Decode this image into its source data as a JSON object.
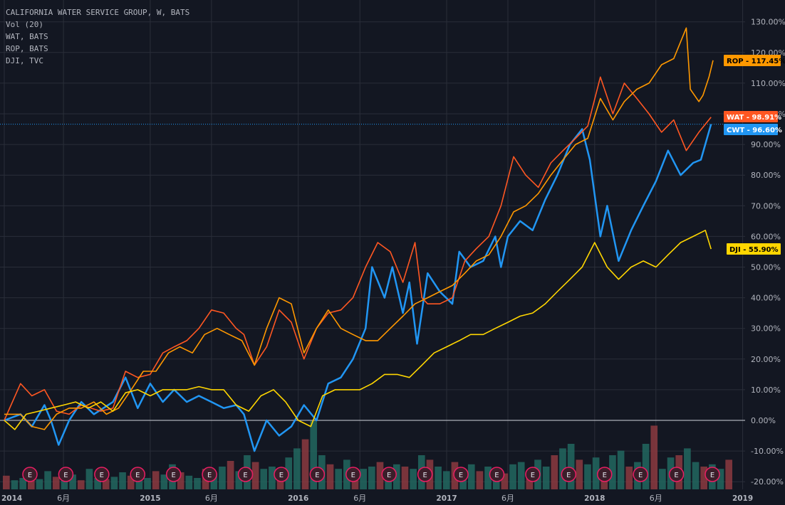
{
  "legend": {
    "lines": [
      "CALIFORNIA WATER SERVICE GROUP, W, BATS",
      "Vol (20)",
      "WAT, BATS",
      "ROP, BATS",
      "DJI, TVC"
    ]
  },
  "chart_data": {
    "type": "line",
    "ylim": [
      -20,
      130
    ],
    "yticks": [
      "-20.00%",
      "-10.00%",
      "0.00%",
      "10.00%",
      "20.00%",
      "30.00%",
      "40.00%",
      "50.00%",
      "60.00%",
      "70.00%",
      "80.00%",
      "90.00%",
      "100.00%",
      "110.00%",
      "120.00%",
      "130.00%"
    ],
    "xlim": [
      "2014-01-06",
      "2018-12-31"
    ],
    "xticks": [
      {
        "label": "2014",
        "date": "2014-01-06",
        "major": true
      },
      {
        "label": "6月",
        "date": "2014-06-01",
        "major": false
      },
      {
        "label": "2015",
        "date": "2015-01-01",
        "major": true
      },
      {
        "label": "6月",
        "date": "2015-06-01",
        "major": false
      },
      {
        "label": "2016",
        "date": "2016-01-01",
        "major": true
      },
      {
        "label": "6月",
        "date": "2016-06-01",
        "major": false
      },
      {
        "label": "2017",
        "date": "2017-01-01",
        "major": true
      },
      {
        "label": "6月",
        "date": "2017-06-01",
        "major": false
      },
      {
        "label": "2018",
        "date": "2018-01-01",
        "major": true
      },
      {
        "label": "6月",
        "date": "2018-06-01",
        "major": false
      },
      {
        "label": "2019",
        "date": "2019-01-01",
        "major": true
      }
    ],
    "series": [
      {
        "name": "CWT",
        "color": "#2196f3",
        "last_label": "CWT - 96.60%",
        "points": [
          [
            "2014-01-06",
            0
          ],
          [
            "2014-02-15",
            2
          ],
          [
            "2014-03-15",
            -2
          ],
          [
            "2014-04-15",
            5
          ],
          [
            "2014-05-01",
            0
          ],
          [
            "2014-05-20",
            -8
          ],
          [
            "2014-06-15",
            0
          ],
          [
            "2014-07-15",
            6
          ],
          [
            "2014-08-15",
            2
          ],
          [
            "2014-10-01",
            6
          ],
          [
            "2014-11-01",
            14
          ],
          [
            "2014-12-01",
            4
          ],
          [
            "2015-01-01",
            12
          ],
          [
            "2015-02-01",
            6
          ],
          [
            "2015-03-01",
            10
          ],
          [
            "2015-04-01",
            6
          ],
          [
            "2015-05-01",
            8
          ],
          [
            "2015-06-01",
            6
          ],
          [
            "2015-07-01",
            4
          ],
          [
            "2015-08-01",
            5
          ],
          [
            "2015-08-20",
            2
          ],
          [
            "2015-09-15",
            -10
          ],
          [
            "2015-10-15",
            0
          ],
          [
            "2015-11-15",
            -5
          ],
          [
            "2015-12-15",
            -2
          ],
          [
            "2016-01-15",
            5
          ],
          [
            "2016-02-15",
            0
          ],
          [
            "2016-03-15",
            12
          ],
          [
            "2016-04-15",
            14
          ],
          [
            "2016-05-15",
            20
          ],
          [
            "2016-06-15",
            30
          ],
          [
            "2016-07-01",
            50
          ],
          [
            "2016-08-01",
            40
          ],
          [
            "2016-08-20",
            50
          ],
          [
            "2016-09-15",
            35
          ],
          [
            "2016-10-01",
            45
          ],
          [
            "2016-10-20",
            25
          ],
          [
            "2016-11-15",
            48
          ],
          [
            "2016-12-15",
            42
          ],
          [
            "2017-01-15",
            38
          ],
          [
            "2017-02-01",
            55
          ],
          [
            "2017-03-01",
            50
          ],
          [
            "2017-04-01",
            52
          ],
          [
            "2017-05-01",
            60
          ],
          [
            "2017-05-15",
            50
          ],
          [
            "2017-06-01",
            60
          ],
          [
            "2017-07-01",
            65
          ],
          [
            "2017-08-01",
            62
          ],
          [
            "2017-09-01",
            72
          ],
          [
            "2017-10-01",
            80
          ],
          [
            "2017-11-01",
            90
          ],
          [
            "2017-12-01",
            95
          ],
          [
            "2017-12-20",
            85
          ],
          [
            "2018-01-15",
            60
          ],
          [
            "2018-02-01",
            70
          ],
          [
            "2018-03-01",
            52
          ],
          [
            "2018-04-01",
            62
          ],
          [
            "2018-05-01",
            70
          ],
          [
            "2018-06-01",
            78
          ],
          [
            "2018-07-01",
            88
          ],
          [
            "2018-08-01",
            80
          ],
          [
            "2018-09-01",
            84
          ],
          [
            "2018-09-20",
            85
          ],
          [
            "2018-10-15",
            96.6
          ]
        ]
      },
      {
        "name": "WAT",
        "color": "#ff5722",
        "last_label": "WAT - 98.91%",
        "points": [
          [
            "2014-01-06",
            0
          ],
          [
            "2014-02-15",
            12
          ],
          [
            "2014-03-15",
            8
          ],
          [
            "2014-04-15",
            10
          ],
          [
            "2014-05-15",
            3
          ],
          [
            "2014-06-15",
            2
          ],
          [
            "2014-07-15",
            5
          ],
          [
            "2014-09-01",
            3
          ],
          [
            "2014-10-01",
            4
          ],
          [
            "2014-11-01",
            16
          ],
          [
            "2014-12-01",
            14
          ],
          [
            "2015-01-01",
            15
          ],
          [
            "2015-02-01",
            22
          ],
          [
            "2015-03-01",
            24
          ],
          [
            "2015-04-01",
            26
          ],
          [
            "2015-05-01",
            30
          ],
          [
            "2015-06-01",
            36
          ],
          [
            "2015-07-01",
            35
          ],
          [
            "2015-08-01",
            30
          ],
          [
            "2015-08-20",
            28
          ],
          [
            "2015-09-15",
            18
          ],
          [
            "2015-10-15",
            24
          ],
          [
            "2015-11-15",
            36
          ],
          [
            "2015-12-15",
            32
          ],
          [
            "2016-01-15",
            20
          ],
          [
            "2016-02-15",
            30
          ],
          [
            "2016-03-15",
            35
          ],
          [
            "2016-04-15",
            36
          ],
          [
            "2016-05-15",
            40
          ],
          [
            "2016-06-15",
            50
          ],
          [
            "2016-07-15",
            58
          ],
          [
            "2016-08-15",
            55
          ],
          [
            "2016-09-15",
            45
          ],
          [
            "2016-10-15",
            58
          ],
          [
            "2016-11-01",
            40
          ],
          [
            "2016-11-15",
            38
          ],
          [
            "2016-12-15",
            38
          ],
          [
            "2017-01-15",
            40
          ],
          [
            "2017-02-15",
            52
          ],
          [
            "2017-03-15",
            56
          ],
          [
            "2017-04-15",
            60
          ],
          [
            "2017-05-15",
            70
          ],
          [
            "2017-06-15",
            86
          ],
          [
            "2017-07-15",
            80
          ],
          [
            "2017-08-15",
            76
          ],
          [
            "2017-09-15",
            84
          ],
          [
            "2017-10-15",
            88
          ],
          [
            "2017-11-15",
            92
          ],
          [
            "2017-12-15",
            96
          ],
          [
            "2018-01-15",
            112
          ],
          [
            "2018-02-15",
            100
          ],
          [
            "2018-03-15",
            110
          ],
          [
            "2018-04-15",
            105
          ],
          [
            "2018-05-15",
            100
          ],
          [
            "2018-06-15",
            94
          ],
          [
            "2018-07-15",
            98
          ],
          [
            "2018-08-15",
            88
          ],
          [
            "2018-09-15",
            94
          ],
          [
            "2018-10-15",
            98.9
          ]
        ]
      },
      {
        "name": "ROP",
        "color": "#ff9800",
        "last_label": "ROP - 117.45%",
        "points": [
          [
            "2014-01-06",
            2
          ],
          [
            "2014-02-15",
            2
          ],
          [
            "2014-03-15",
            -2
          ],
          [
            "2014-04-15",
            -3
          ],
          [
            "2014-05-15",
            2
          ],
          [
            "2014-06-15",
            4
          ],
          [
            "2014-07-15",
            4
          ],
          [
            "2014-08-15",
            6
          ],
          [
            "2014-09-15",
            2
          ],
          [
            "2014-10-15",
            4
          ],
          [
            "2014-11-15",
            10
          ],
          [
            "2014-12-15",
            16
          ],
          [
            "2015-01-15",
            16
          ],
          [
            "2015-02-15",
            22
          ],
          [
            "2015-03-15",
            24
          ],
          [
            "2015-04-15",
            22
          ],
          [
            "2015-05-15",
            28
          ],
          [
            "2015-06-15",
            30
          ],
          [
            "2015-07-15",
            28
          ],
          [
            "2015-08-15",
            26
          ],
          [
            "2015-09-15",
            18
          ],
          [
            "2015-10-15",
            30
          ],
          [
            "2015-11-15",
            40
          ],
          [
            "2015-12-15",
            38
          ],
          [
            "2016-01-15",
            22
          ],
          [
            "2016-02-15",
            30
          ],
          [
            "2016-03-15",
            36
          ],
          [
            "2016-04-15",
            30
          ],
          [
            "2016-05-15",
            28
          ],
          [
            "2016-06-15",
            26
          ],
          [
            "2016-07-15",
            26
          ],
          [
            "2016-08-15",
            30
          ],
          [
            "2016-09-15",
            34
          ],
          [
            "2016-10-15",
            38
          ],
          [
            "2016-11-15",
            40
          ],
          [
            "2016-12-15",
            42
          ],
          [
            "2017-01-15",
            44
          ],
          [
            "2017-02-15",
            48
          ],
          [
            "2017-03-15",
            52
          ],
          [
            "2017-04-15",
            54
          ],
          [
            "2017-05-15",
            60
          ],
          [
            "2017-06-15",
            68
          ],
          [
            "2017-07-15",
            70
          ],
          [
            "2017-08-15",
            74
          ],
          [
            "2017-09-15",
            80
          ],
          [
            "2017-10-15",
            85
          ],
          [
            "2017-11-15",
            90
          ],
          [
            "2017-12-15",
            92
          ],
          [
            "2018-01-15",
            105
          ],
          [
            "2018-02-15",
            98
          ],
          [
            "2018-03-15",
            104
          ],
          [
            "2018-04-15",
            108
          ],
          [
            "2018-05-15",
            110
          ],
          [
            "2018-06-15",
            116
          ],
          [
            "2018-07-15",
            118
          ],
          [
            "2018-08-15",
            128
          ],
          [
            "2018-08-25",
            108
          ],
          [
            "2018-09-15",
            104
          ],
          [
            "2018-09-25",
            106
          ],
          [
            "2018-10-10",
            112
          ],
          [
            "2018-10-20",
            117.45
          ]
        ]
      },
      {
        "name": "DJI",
        "color": "#ffd600",
        "last_label": "DJI - 55.90%",
        "points": [
          [
            "2014-01-06",
            0
          ],
          [
            "2014-02-01",
            -3
          ],
          [
            "2014-03-01",
            2
          ],
          [
            "2014-04-01",
            3
          ],
          [
            "2014-05-01",
            4
          ],
          [
            "2014-06-01",
            5
          ],
          [
            "2014-07-01",
            6
          ],
          [
            "2014-08-01",
            4
          ],
          [
            "2014-09-01",
            6
          ],
          [
            "2014-10-01",
            3
          ],
          [
            "2014-11-01",
            9
          ],
          [
            "2014-12-01",
            10
          ],
          [
            "2015-01-01",
            8
          ],
          [
            "2015-02-01",
            10
          ],
          [
            "2015-03-01",
            10
          ],
          [
            "2015-04-01",
            10
          ],
          [
            "2015-05-01",
            11
          ],
          [
            "2015-06-01",
            10
          ],
          [
            "2015-07-01",
            10
          ],
          [
            "2015-08-01",
            5
          ],
          [
            "2015-09-01",
            3
          ],
          [
            "2015-10-01",
            8
          ],
          [
            "2015-11-01",
            10
          ],
          [
            "2015-12-01",
            6
          ],
          [
            "2016-01-01",
            0
          ],
          [
            "2016-02-01",
            -2
          ],
          [
            "2016-03-01",
            8
          ],
          [
            "2016-04-01",
            10
          ],
          [
            "2016-05-01",
            10
          ],
          [
            "2016-06-01",
            10
          ],
          [
            "2016-07-01",
            12
          ],
          [
            "2016-08-01",
            15
          ],
          [
            "2016-09-01",
            15
          ],
          [
            "2016-10-01",
            14
          ],
          [
            "2016-11-01",
            18
          ],
          [
            "2016-12-01",
            22
          ],
          [
            "2017-01-01",
            24
          ],
          [
            "2017-02-01",
            26
          ],
          [
            "2017-03-01",
            28
          ],
          [
            "2017-04-01",
            28
          ],
          [
            "2017-05-01",
            30
          ],
          [
            "2017-06-01",
            32
          ],
          [
            "2017-07-01",
            34
          ],
          [
            "2017-08-01",
            35
          ],
          [
            "2017-09-01",
            38
          ],
          [
            "2017-10-01",
            42
          ],
          [
            "2017-11-01",
            46
          ],
          [
            "2017-12-01",
            50
          ],
          [
            "2018-01-01",
            58
          ],
          [
            "2018-02-01",
            50
          ],
          [
            "2018-03-01",
            46
          ],
          [
            "2018-04-01",
            50
          ],
          [
            "2018-05-01",
            52
          ],
          [
            "2018-06-01",
            50
          ],
          [
            "2018-07-01",
            54
          ],
          [
            "2018-08-01",
            58
          ],
          [
            "2018-09-01",
            60
          ],
          [
            "2018-10-01",
            62
          ],
          [
            "2018-10-15",
            55.9
          ]
        ]
      }
    ],
    "reference_line": 96.6,
    "volume_bars": [
      12,
      8,
      10,
      14,
      9,
      16,
      11,
      10,
      13,
      8,
      18,
      10,
      9,
      11,
      15,
      12,
      14,
      10,
      16,
      13,
      22,
      15,
      12,
      10,
      18,
      14,
      20,
      25,
      16,
      30,
      24,
      18,
      20,
      14,
      28,
      36,
      44,
      60,
      30,
      22,
      18,
      26,
      16,
      18,
      20,
      24,
      14,
      22,
      20,
      18,
      30,
      26,
      20,
      16,
      24,
      18,
      22,
      16,
      20,
      18,
      14,
      22,
      24,
      12,
      26,
      20,
      30,
      36,
      40,
      26,
      22,
      28,
      18,
      30,
      34,
      20,
      24,
      40,
      56,
      18,
      28,
      30,
      36,
      24,
      20,
      22,
      18,
      26
    ],
    "earnings_markers": [
      "E",
      "E",
      "E",
      "E",
      "E",
      "E",
      "E",
      "E",
      "E",
      "E",
      "E",
      "E",
      "E",
      "E",
      "E",
      "E",
      "E",
      "E",
      "E",
      "E"
    ]
  }
}
